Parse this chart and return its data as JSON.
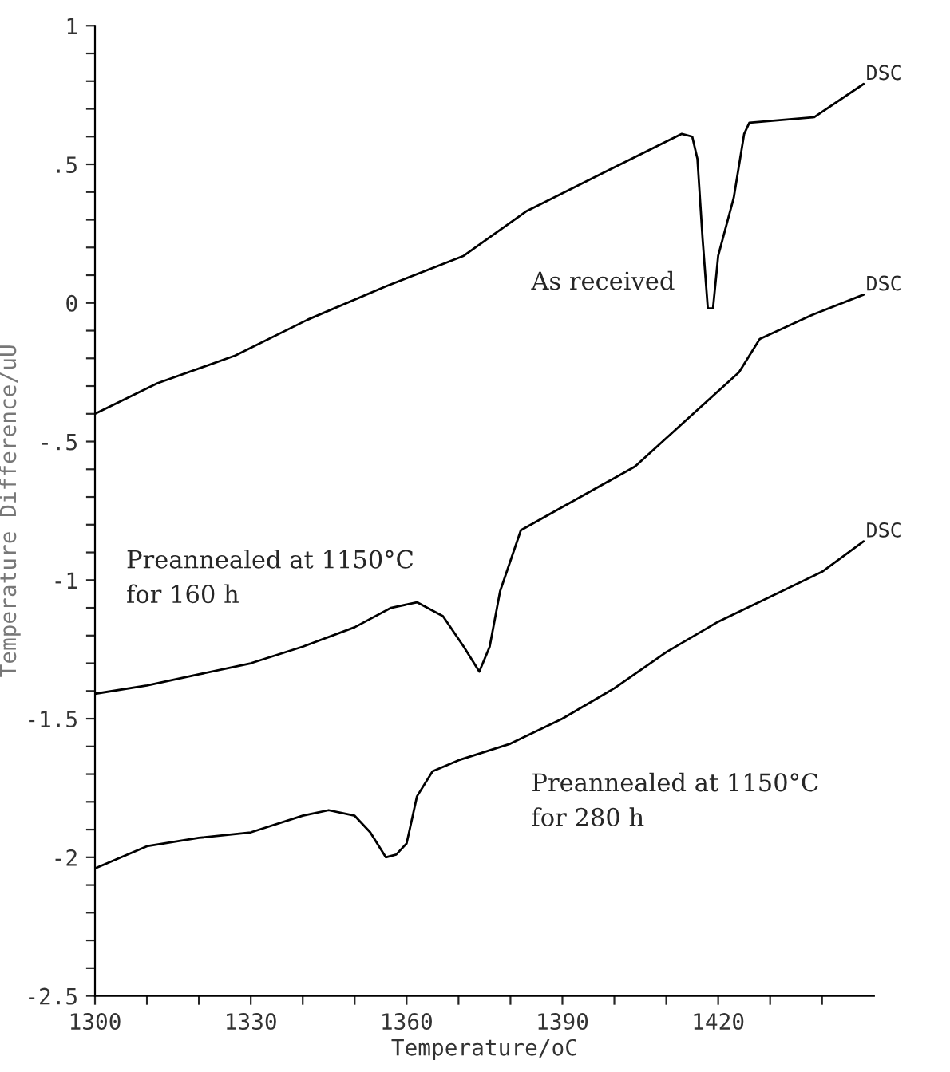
{
  "chart_data": {
    "type": "line",
    "xlabel": "Temperature/oC",
    "ylabel": "Temperature Difference/uU",
    "xlim": [
      1300,
      1450
    ],
    "ylim": [
      -2.5,
      1
    ],
    "xticks": [
      1300,
      {
        "value": 1310,
        "label": null
      },
      {
        "value": 1320,
        "label": null
      },
      1330,
      {
        "value": 1340,
        "label": null
      },
      {
        "value": 1350,
        "label": null
      },
      1360,
      {
        "value": 1370,
        "label": null
      },
      {
        "value": 1380,
        "label": null
      },
      1390,
      {
        "value": 1400,
        "label": null
      },
      {
        "value": 1410,
        "label": null
      },
      1420,
      {
        "value": 1430,
        "label": null
      },
      {
        "value": 1440,
        "label": null
      }
    ],
    "yticks": [
      {
        "value": -2.5,
        "label": "-2.5"
      },
      {
        "value": -2.4,
        "label": null
      },
      {
        "value": -2.3,
        "label": null
      },
      {
        "value": -2.2,
        "label": null
      },
      {
        "value": -2.1,
        "label": null
      },
      {
        "value": -2,
        "label": "-2"
      },
      {
        "value": -1.9,
        "label": null
      },
      {
        "value": -1.8,
        "label": null
      },
      {
        "value": -1.7,
        "label": null
      },
      {
        "value": -1.6,
        "label": null
      },
      {
        "value": -1.5,
        "label": "-1.5"
      },
      {
        "value": -1.4,
        "label": null
      },
      {
        "value": -1.3,
        "label": null
      },
      {
        "value": -1.2,
        "label": null
      },
      {
        "value": -1.1,
        "label": null
      },
      {
        "value": -1,
        "label": "-1"
      },
      {
        "value": -0.9,
        "label": null
      },
      {
        "value": -0.8,
        "label": null
      },
      {
        "value": -0.7,
        "label": null
      },
      {
        "value": -0.6,
        "label": null
      },
      {
        "value": -0.5,
        "label": "-.5"
      },
      {
        "value": -0.4,
        "label": null
      },
      {
        "value": -0.3,
        "label": null
      },
      {
        "value": -0.2,
        "label": null
      },
      {
        "value": -0.1,
        "label": null
      },
      {
        "value": 0,
        "label": "0"
      },
      {
        "value": 0.1,
        "label": null
      },
      {
        "value": 0.2,
        "label": null
      },
      {
        "value": 0.3,
        "label": null
      },
      {
        "value": 0.4,
        "label": null
      },
      {
        "value": 0.5,
        "label": ".5"
      },
      {
        "value": 0.6,
        "label": null
      },
      {
        "value": 0.7,
        "label": null
      },
      {
        "value": 0.8,
        "label": null
      },
      {
        "value": 0.9,
        "label": null
      },
      {
        "value": 1,
        "label": "1"
      }
    ],
    "grid": false,
    "legend": false,
    "marker": "none",
    "line_style": "solid",
    "series": [
      {
        "name": "As received",
        "color": "#000000",
        "x": [
          1300,
          1312,
          1327,
          1341,
          1356,
          1371,
          1383,
          1399,
          1413,
          1415,
          1416,
          1417,
          1418,
          1419,
          1420,
          1423,
          1425,
          1426,
          1438.5,
          1448
        ],
        "values": [
          -0.4,
          -0.29,
          -0.19,
          -0.06,
          0.06,
          0.17,
          0.33,
          0.48,
          0.61,
          0.6,
          0.52,
          0.23,
          -0.02,
          -0.02,
          0.17,
          0.38,
          0.61,
          0.65,
          0.67,
          0.79
        ]
      },
      {
        "name": "Preannealed at 1150°C\nfor 160 h",
        "color": "#000000",
        "x": [
          1300,
          1310,
          1320,
          1330,
          1340,
          1350,
          1357,
          1362,
          1367,
          1371,
          1374,
          1376,
          1378,
          1382,
          1404,
          1424,
          1428,
          1438.5,
          1448
        ],
        "values": [
          -1.41,
          -1.38,
          -1.34,
          -1.3,
          -1.24,
          -1.17,
          -1.1,
          -1.08,
          -1.13,
          -1.24,
          -1.33,
          -1.24,
          -1.04,
          -0.82,
          -0.59,
          -0.25,
          -0.13,
          -0.04,
          0.03
        ]
      },
      {
        "name": "Preannealed at 1150°C\nfor 280 h",
        "color": "#000000",
        "x": [
          1300,
          1310,
          1320,
          1330,
          1340,
          1345,
          1350,
          1353,
          1356,
          1358,
          1360,
          1362,
          1365,
          1370,
          1380,
          1390,
          1400,
          1410,
          1420,
          1430,
          1440,
          1448
        ],
        "values": [
          -2.04,
          -1.96,
          -1.93,
          -1.91,
          -1.85,
          -1.83,
          -1.85,
          -1.91,
          -2.0,
          -1.99,
          -1.95,
          -1.78,
          -1.69,
          -1.65,
          -1.59,
          -1.5,
          -1.39,
          -1.26,
          -1.15,
          -1.06,
          -0.97,
          -0.86
        ]
      }
    ],
    "annotations": [
      "DSC",
      "DSC",
      "DSC"
    ]
  }
}
